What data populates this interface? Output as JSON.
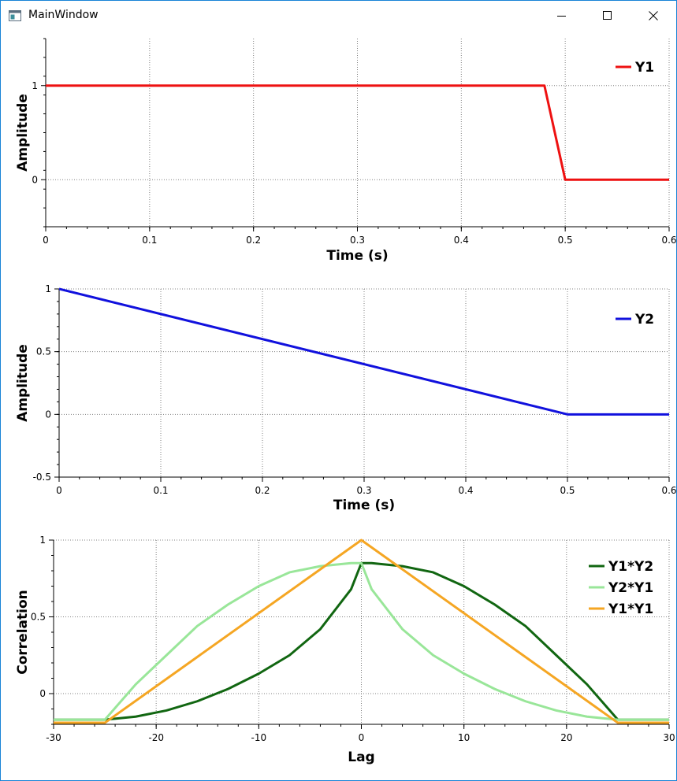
{
  "window": {
    "title": "MainWindow",
    "icons": [
      "app-icon",
      "minimize-icon",
      "maximize-icon",
      "close-icon"
    ]
  },
  "colors": {
    "frame": "#1883d7",
    "grid": "#808080"
  },
  "chart_data": [
    {
      "id": "plot1",
      "type": "line",
      "title": "",
      "xlabel": "Time (s)",
      "ylabel": "Amplitude",
      "xlim": [
        0,
        0.6
      ],
      "ylim": [
        -0.5,
        1.5
      ],
      "xticks": [
        0,
        0.1,
        0.2,
        0.3,
        0.4,
        0.5,
        0.6
      ],
      "xtick_labels": [
        "0",
        "0.1",
        "0.2",
        "0.3",
        "0.4",
        "0.5",
        "0.6"
      ],
      "yticks": [
        0,
        1
      ],
      "ytick_labels": [
        "0",
        "1"
      ],
      "x_minor_step": 0.02,
      "y_minor_step": 0.2,
      "legend_position": "top-right",
      "grid": true,
      "series": [
        {
          "name": "Y1",
          "color": "#ee1111",
          "x": [
            0,
            0.48,
            0.5,
            0.6
          ],
          "y": [
            1,
            1,
            0,
            0
          ]
        }
      ]
    },
    {
      "id": "plot2",
      "type": "line",
      "title": "",
      "xlabel": "Time (s)",
      "ylabel": "Amplitude",
      "xlim": [
        0,
        0.6
      ],
      "ylim": [
        -0.5,
        1
      ],
      "xticks": [
        0,
        0.1,
        0.2,
        0.3,
        0.4,
        0.5,
        0.6
      ],
      "xtick_labels": [
        "0",
        "0.1",
        "0.2",
        "0.3",
        "0.4",
        "0.5",
        "0.6"
      ],
      "yticks": [
        -0.5,
        0,
        0.5,
        1
      ],
      "ytick_labels": [
        "-0.5",
        "0",
        "0.5",
        "1"
      ],
      "x_minor_step": 0.02,
      "y_minor_step": 0.1,
      "legend_position": "top-right",
      "grid": true,
      "series": [
        {
          "name": "Y2",
          "color": "#1111dd",
          "x": [
            0,
            0.5,
            0.6
          ],
          "y": [
            1,
            0,
            0
          ]
        }
      ]
    },
    {
      "id": "plot3",
      "type": "line",
      "title": "",
      "xlabel": "Lag",
      "ylabel": "Correlation",
      "xlim": [
        -30,
        30
      ],
      "ylim": [
        -0.2,
        1
      ],
      "xticks": [
        -30,
        -20,
        -10,
        0,
        10,
        20,
        30
      ],
      "xtick_labels": [
        "-30",
        "-20",
        "-10",
        "0",
        "10",
        "20",
        "30"
      ],
      "yticks": [
        0,
        0.5,
        1
      ],
      "ytick_labels": [
        "0",
        "0.5",
        "1"
      ],
      "x_minor_step": 2,
      "y_minor_step": 0.1,
      "legend_position": "top-right",
      "grid": true,
      "series": [
        {
          "name": "Y1*Y2",
          "color": "#116611",
          "x": [
            -30,
            -25,
            -22,
            -19,
            -16,
            -13,
            -10,
            -7,
            -4,
            -1,
            0,
            1,
            4,
            7,
            10,
            13,
            16,
            19,
            22,
            25,
            30
          ],
          "y": [
            -0.17,
            -0.17,
            -0.15,
            -0.11,
            -0.05,
            0.03,
            0.13,
            0.25,
            0.42,
            0.68,
            0.85,
            0.85,
            0.83,
            0.79,
            0.7,
            0.58,
            0.44,
            0.25,
            0.06,
            -0.17,
            -0.17
          ]
        },
        {
          "name": "Y2*Y1",
          "color": "#99e699",
          "x": [
            -30,
            -25,
            -22,
            -19,
            -16,
            -13,
            -10,
            -7,
            -4,
            -1,
            0,
            1,
            4,
            7,
            10,
            13,
            16,
            19,
            22,
            25,
            30
          ],
          "y": [
            -0.17,
            -0.17,
            0.06,
            0.25,
            0.44,
            0.58,
            0.7,
            0.79,
            0.83,
            0.85,
            0.85,
            0.68,
            0.42,
            0.25,
            0.13,
            0.03,
            -0.05,
            -0.11,
            -0.15,
            -0.17,
            -0.17
          ]
        },
        {
          "name": "Y1*Y1",
          "color": "#f5a623",
          "x": [
            -30,
            -25,
            0,
            25,
            30
          ],
          "y": [
            -0.19,
            -0.19,
            1,
            -0.19,
            -0.19
          ]
        }
      ]
    }
  ]
}
